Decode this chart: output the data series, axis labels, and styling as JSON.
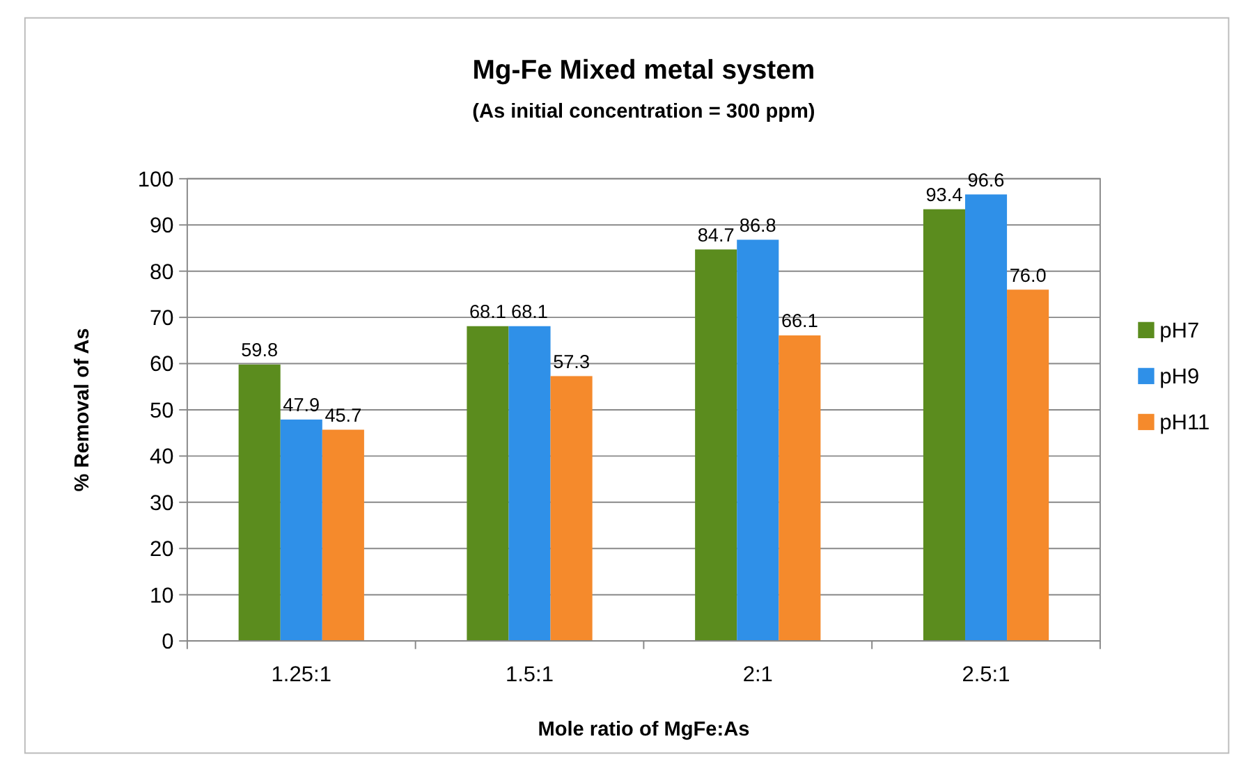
{
  "chart_data": {
    "type": "bar",
    "title": "Mg-Fe Mixed metal system",
    "subtitle": "(As initial concentration = 300 ppm)",
    "xlabel": "Mole ratio of MgFe:As",
    "ylabel": "% Removal of As",
    "categories": [
      "1.25:1",
      "1.5:1",
      "2:1",
      "2.5:1"
    ],
    "series": [
      {
        "name": "pH7",
        "color": "#5b8c1e",
        "values": [
          59.8,
          68.1,
          84.7,
          93.4
        ]
      },
      {
        "name": "pH9",
        "color": "#2f90e8",
        "values": [
          47.9,
          68.1,
          86.8,
          96.6
        ]
      },
      {
        "name": "pH11",
        "color": "#f58a2c",
        "values": [
          45.7,
          57.3,
          66.1,
          76.0
        ]
      }
    ],
    "value_labels": [
      [
        "59.8",
        "68.1",
        "84.7",
        "93.4"
      ],
      [
        "47.9",
        "68.1",
        "86.8",
        "96.6"
      ],
      [
        "45.7",
        "57.3",
        "66.1",
        "76.0"
      ]
    ],
    "ylim": [
      0,
      100
    ],
    "yticks": [
      0,
      10,
      20,
      30,
      40,
      50,
      60,
      70,
      80,
      90,
      100
    ],
    "grid": "y",
    "legend": "right"
  }
}
